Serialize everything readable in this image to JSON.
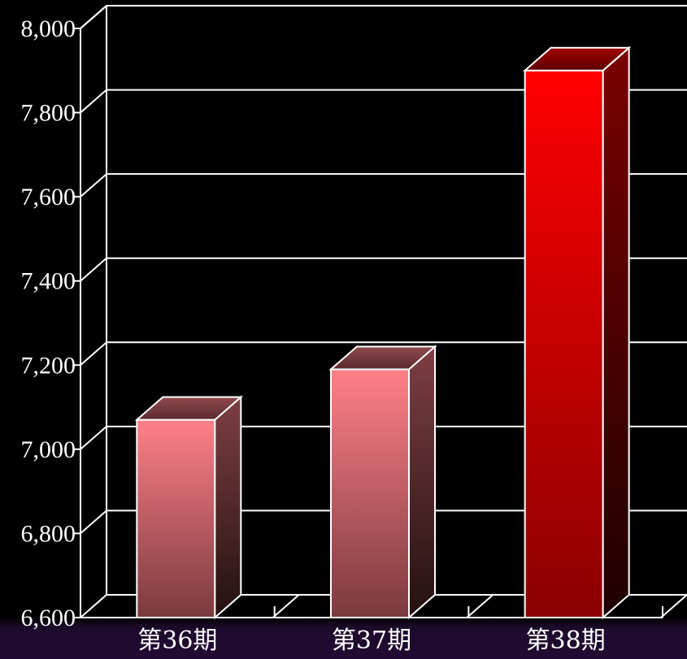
{
  "chart_data": {
    "type": "bar",
    "style": "3d",
    "categories": [
      "第36期",
      "第37期",
      "第38期"
    ],
    "values": [
      7070,
      7190,
      7900
    ],
    "ylim": [
      6600,
      8000
    ],
    "yticks": [
      6600,
      6800,
      7000,
      7200,
      7400,
      7600,
      7800,
      8000
    ],
    "ytick_labels": [
      "6,600",
      "6,800",
      "7,000",
      "7,200",
      "7,400",
      "7,600",
      "7,800",
      "8,000"
    ],
    "grid": true,
    "title": "",
    "xlabel": "",
    "ylabel": "",
    "colors": {
      "background": "#000000",
      "footer": "#220b33",
      "grid": "#ffffff",
      "bar_normal_top": "#ff8088",
      "bar_normal_bottom": "#7a3a3e",
      "bar_highlight_top": "#ff0000",
      "bar_highlight_bottom": "#8a0000"
    },
    "highlight_index": 2
  }
}
